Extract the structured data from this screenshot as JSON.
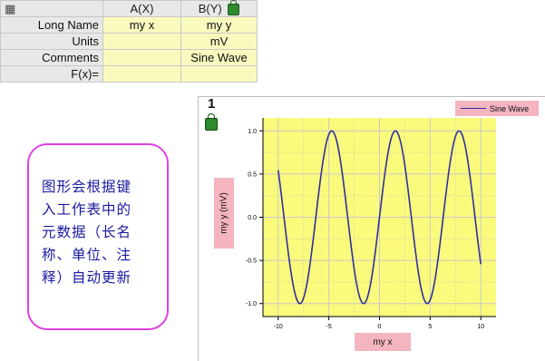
{
  "worksheet": {
    "columns": [
      {
        "label": "A(X)"
      },
      {
        "label": "B(Y)"
      }
    ],
    "rows": [
      {
        "label": "Long Name",
        "a": "my x",
        "b": "my y"
      },
      {
        "label": "Units",
        "a": "",
        "b": "mV"
      },
      {
        "label": "Comments",
        "a": "",
        "b": "Sine Wave"
      },
      {
        "label": "F(x)=",
        "a": "",
        "b": ""
      }
    ]
  },
  "callout": {
    "lines": [
      "图形会根据键",
      "入工作表中的",
      "元数据（长名",
      "称、单位、注",
      "释）自动更新"
    ]
  },
  "graph": {
    "window_number": "1",
    "legend_label": "Sine Wave",
    "ylabel": "my y (mV)",
    "xlabel": "my x"
  },
  "colors": {
    "plot_bg": "#fafa7c",
    "line": "#3030a0",
    "label_bg": "#f4b4c0",
    "callout_border": "#e040e0",
    "callout_text": "#1a1aa0"
  },
  "chart_data": {
    "type": "line",
    "series": [
      {
        "name": "Sine Wave",
        "function": "sin",
        "x_start": -10,
        "x_end": 10,
        "points": 201
      }
    ],
    "xlim": [
      -11.5,
      11.5
    ],
    "ylim": [
      -1.15,
      1.15
    ],
    "xticks": [
      -10,
      -5,
      0,
      5,
      10
    ],
    "yticks": [
      -1.0,
      -0.5,
      0.0,
      0.5,
      1.0
    ],
    "xtick_labels": [
      "-10",
      "-5",
      "0",
      "5",
      "10"
    ],
    "ytick_labels": [
      "-1.0",
      "-0.5",
      "0.0",
      "0.5",
      "1.0"
    ],
    "grid": true
  }
}
